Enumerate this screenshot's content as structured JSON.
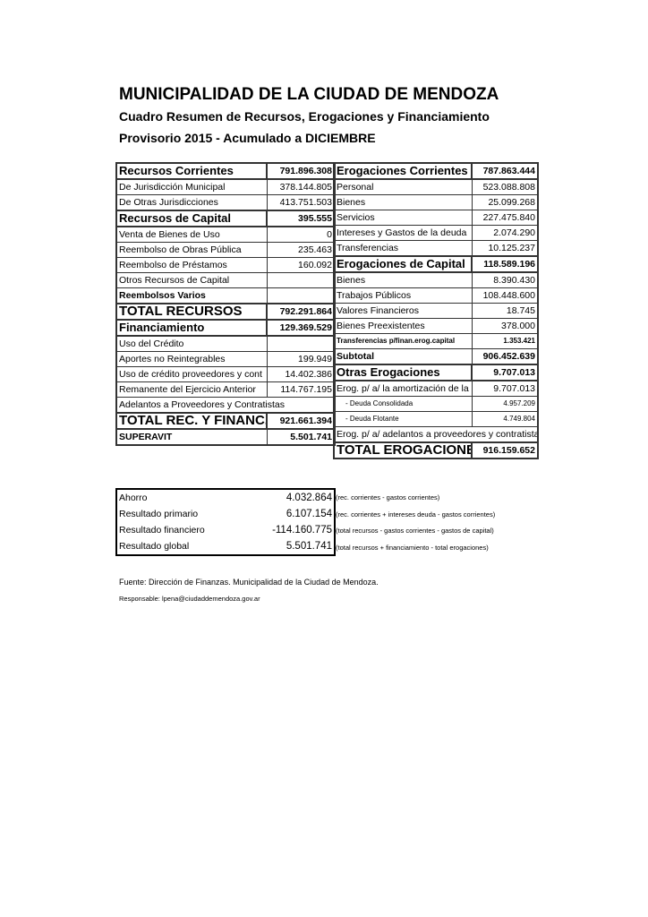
{
  "header": {
    "title": "MUNICIPALIDAD DE LA CIUDAD DE MENDOZA",
    "subtitle": "Cuadro Resumen de Recursos, Erogaciones y Financiamiento",
    "period": "Provisorio 2015 - Acumulado a DICIEMBRE"
  },
  "left": {
    "rows": [
      {
        "kind": "h",
        "label": "Recursos Corrientes",
        "value": "791.896.308"
      },
      {
        "kind": "n",
        "label": "De Jurisdicción Municipal",
        "value": "378.144.805"
      },
      {
        "kind": "n",
        "label": "De Otras Jurisdicciones",
        "value": "413.751.503"
      },
      {
        "kind": "h",
        "label": "Recursos de Capital",
        "value": "395.555"
      },
      {
        "kind": "n",
        "label": "Venta de Bienes de Uso",
        "value": "0"
      },
      {
        "kind": "n",
        "label": "Reembolso de Obras Pública",
        "value": "235.463"
      },
      {
        "kind": "n",
        "label": "Reembolso de Préstamos",
        "value": "160.092"
      },
      {
        "kind": "n",
        "label": "Otros Recursos de Capital",
        "value": ""
      },
      {
        "kind": "b",
        "label": "Reembolsos Varios",
        "value": ""
      },
      {
        "kind": "big",
        "label": "TOTAL RECURSOS",
        "value": "792.291.864"
      },
      {
        "kind": "h",
        "label": "Financiamiento",
        "value": "129.369.529"
      },
      {
        "kind": "n",
        "label": "Uso del Crédito",
        "value": ""
      },
      {
        "kind": "n",
        "label": "Aportes no Reintegrables",
        "value": "199.949"
      },
      {
        "kind": "n",
        "label": "Uso de crédito proveedores y cont",
        "value": "14.402.386"
      },
      {
        "kind": "n",
        "label": "Remanente del Ejercicio Anterior",
        "value": "114.767.195"
      },
      {
        "kind": "span",
        "label": "Adelantos a Proveedores y Contratistas",
        "value": ""
      },
      {
        "kind": "big",
        "label": "TOTAL REC. Y FINANC.",
        "value": "921.661.394"
      },
      {
        "kind": "b",
        "label": "SUPERAVIT",
        "value": "5.501.741"
      }
    ]
  },
  "right": {
    "rows": [
      {
        "kind": "h",
        "label": "Erogaciones Corrientes",
        "value": "787.863.444"
      },
      {
        "kind": "n",
        "label": "Personal",
        "value": "523.088.808"
      },
      {
        "kind": "n",
        "label": "Bienes",
        "value": "25.099.268"
      },
      {
        "kind": "n",
        "label": "Servicios",
        "value": "227.475.840"
      },
      {
        "kind": "n",
        "label": "Intereses y Gastos de la deuda",
        "value": "2.074.290"
      },
      {
        "kind": "n",
        "label": "Transferencias",
        "value": "10.125.237"
      },
      {
        "kind": "h",
        "label": "Erogaciones de Capital",
        "value": "118.589.196"
      },
      {
        "kind": "n",
        "label": "Bienes",
        "value": "8.390.430"
      },
      {
        "kind": "n",
        "label": "Trabajos Públicos",
        "value": "108.448.600"
      },
      {
        "kind": "n",
        "label": "Valores Financieros",
        "value": "18.745"
      },
      {
        "kind": "n",
        "label": "Bienes Preexistentes",
        "value": "378.000"
      },
      {
        "kind": "sb",
        "label": "Transferencias p/finan.erog.capital",
        "value": "1.353.421"
      },
      {
        "kind": "b",
        "label": "Subtotal",
        "value": "906.452.639"
      },
      {
        "kind": "h",
        "label": "Otras Erogaciones",
        "value": "9.707.013"
      },
      {
        "kind": "n",
        "label": "Erog. p/ a/ la amortización de la deuda públic",
        "value": "9.707.013"
      },
      {
        "kind": "s",
        "label": "- Deuda Consolidada",
        "value": "4.957.209"
      },
      {
        "kind": "s",
        "label": "- Deuda Flotante",
        "value": "4.749.804"
      },
      {
        "kind": "span",
        "label": "Erog. p/ a/ adelantos a proveedores y contratistas",
        "value": ""
      },
      {
        "kind": "big",
        "label": "TOTAL EROGACIONES",
        "value": "916.159.652"
      }
    ]
  },
  "summary": {
    "rows": [
      {
        "label": "Ahorro",
        "value": "4.032.864",
        "note": "(rec. corrientes - gastos corrientes)"
      },
      {
        "label": "Resultado primario",
        "value": "6.107.154",
        "note": "(rec. corrientes + intereses deuda - gastos corrientes)"
      },
      {
        "label": "Resultado financiero",
        "value": "-114.160.775",
        "note": "(total recursos - gastos corrientes - gastos de capital)"
      },
      {
        "label": "Resultado global",
        "value": "5.501.741",
        "note": "(total recursos + financiamiento - total erogaciones)"
      }
    ]
  },
  "footer": {
    "source": "Fuente: Dirección de Finanzas. Municipalidad de la Ciudad de Mendoza.",
    "responsible": "Responsable: lpena@ciudaddemendoza.gov.ar"
  }
}
